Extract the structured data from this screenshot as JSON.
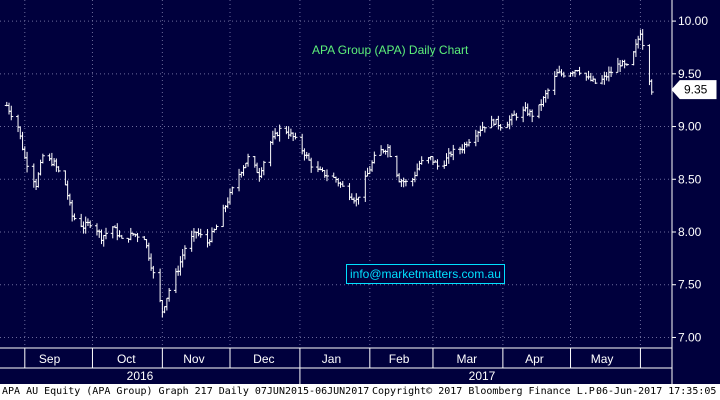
{
  "footer": {
    "left": "APA AU Equity (APA Group) Graph 217  Daily 07JUN2015-06JUN2017",
    "mid": "Copyright© 2017 Bloomberg Finance L.P.",
    "right": "06-Jun-2017 17:35:05"
  },
  "overlay": {
    "email": "info@marketmatters.com.au"
  },
  "colors": {
    "background": "#00003d",
    "grid": "#6b6b9b",
    "bars": "#ffffff",
    "title": "#5df07a",
    "email": "#00e0ff"
  },
  "chart_data": {
    "type": "ohlc",
    "title": "APA Group (APA) Daily Chart",
    "ylim": [
      6.9,
      10.2
    ],
    "yticks": [
      "7.00",
      "7.50",
      "8.00",
      "8.50",
      "9.00",
      "9.50",
      "10.00"
    ],
    "last_price_label": "9.35",
    "grid": true,
    "x_month_labels": [
      "Sep",
      "Oct",
      "Nov",
      "Dec",
      "Jan",
      "Feb",
      "Mar",
      "Apr",
      "May"
    ],
    "x_year_labels": [
      "2016",
      "2017"
    ],
    "x": [
      "2016-08-24",
      "2016-08-29",
      "2016-09-01",
      "2016-09-06",
      "2016-09-09",
      "2016-09-14",
      "2016-09-19",
      "2016-09-22",
      "2016-09-27",
      "2016-10-01",
      "2016-10-05",
      "2016-10-10",
      "2016-10-14",
      "2016-10-19",
      "2016-10-24",
      "2016-10-28",
      "2016-11-01",
      "2016-11-04",
      "2016-11-08",
      "2016-11-11",
      "2016-11-16",
      "2016-11-21",
      "2016-11-25",
      "2016-11-30",
      "2016-12-05",
      "2016-12-09",
      "2016-12-14",
      "2016-12-19",
      "2016-12-24",
      "2016-12-29",
      "2017-01-03",
      "2017-01-07",
      "2017-01-12",
      "2017-01-17",
      "2017-01-21",
      "2017-01-26",
      "2017-01-31",
      "2017-02-04",
      "2017-02-09",
      "2017-02-14",
      "2017-02-19",
      "2017-02-23",
      "2017-02-28",
      "2017-03-04",
      "2017-03-09",
      "2017-03-14",
      "2017-03-18",
      "2017-03-23",
      "2017-03-28",
      "2017-04-01",
      "2017-04-06",
      "2017-04-11",
      "2017-04-15",
      "2017-04-20",
      "2017-04-25",
      "2017-04-29",
      "2017-05-04",
      "2017-05-09",
      "2017-05-13",
      "2017-05-18",
      "2017-05-23",
      "2017-05-27",
      "2017-06-01",
      "2017-06-06"
    ],
    "close": [
      9.2,
      9.0,
      8.7,
      8.45,
      8.72,
      8.65,
      8.45,
      8.15,
      8.05,
      8.1,
      7.95,
      8.05,
      7.92,
      7.98,
      7.95,
      7.6,
      7.25,
      7.45,
      7.65,
      7.85,
      8.0,
      7.9,
      8.05,
      8.3,
      8.55,
      8.7,
      8.55,
      8.85,
      9.0,
      8.9,
      8.75,
      8.6,
      8.55,
      8.5,
      8.4,
      8.3,
      8.55,
      8.75,
      8.8,
      8.5,
      8.45,
      8.65,
      8.7,
      8.6,
      8.75,
      8.8,
      8.9,
      9.0,
      9.05,
      9.0,
      9.1,
      9.15,
      9.1,
      9.3,
      9.5,
      9.5,
      9.55,
      9.45,
      9.4,
      9.5,
      9.6,
      9.55,
      9.9,
      9.35
    ]
  }
}
